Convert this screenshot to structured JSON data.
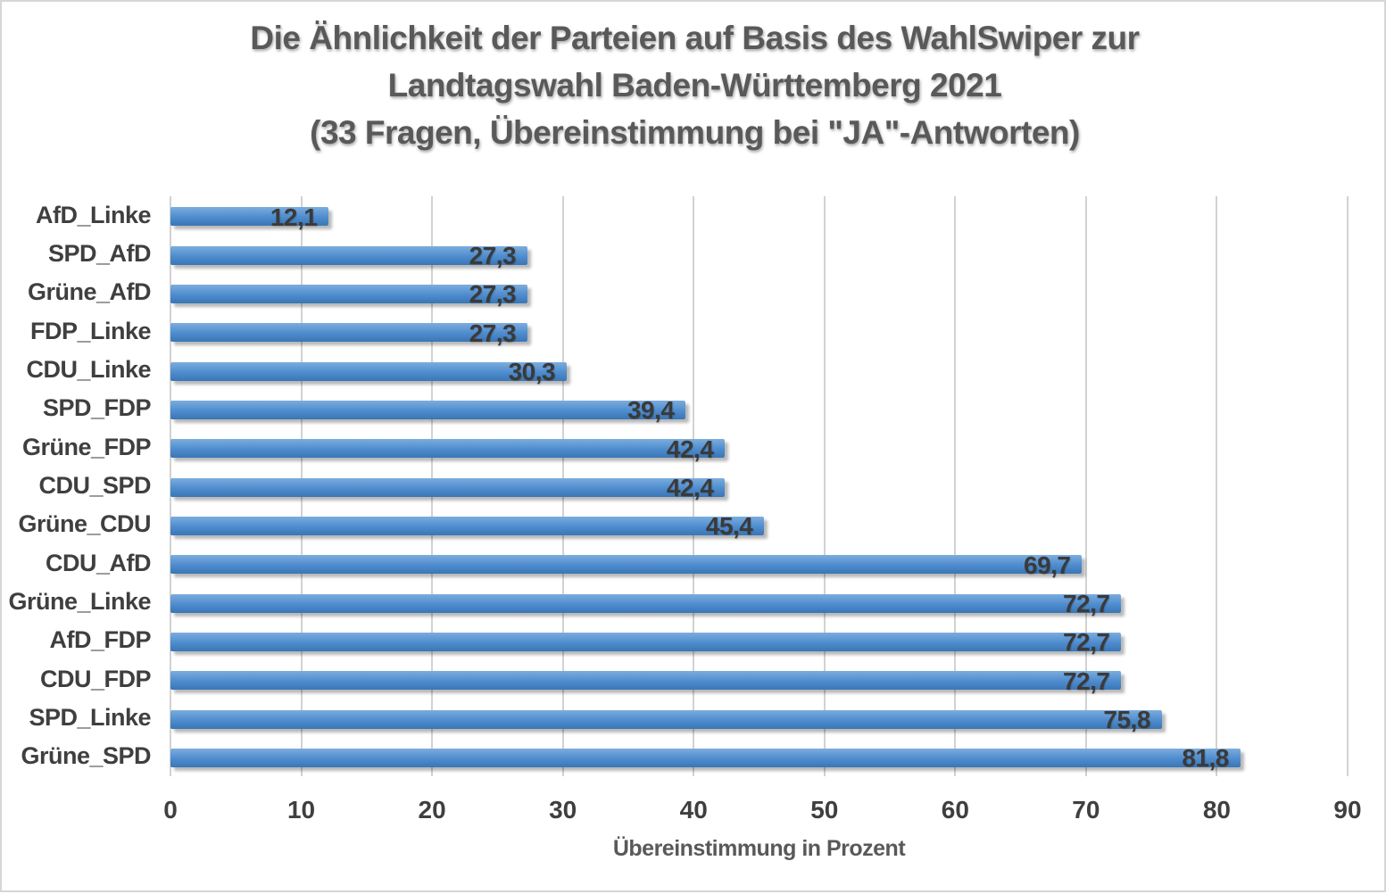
{
  "title": {
    "line1": "Die Ähnlichkeit der Parteien auf Basis des WahlSwiper zur",
    "line2": "Landtagswahl Baden-Württemberg 2021",
    "line3": "(33 Fragen, Übereinstimmung bei \"JA\"-Antworten)"
  },
  "chart_data": {
    "type": "bar",
    "orientation": "horizontal",
    "title": "Die Ähnlichkeit der Parteien auf Basis des WahlSwiper zur Landtagswahl Baden-Württemberg 2021 (33 Fragen, Übereinstimmung bei \"JA\"-Antworten)",
    "categories": [
      "AfD_Linke",
      "SPD_AfD",
      "Grüne_AfD",
      "FDP_Linke",
      "CDU_Linke",
      "SPD_FDP",
      "Grüne_FDP",
      "CDU_SPD",
      "Grüne_CDU",
      "CDU_AfD",
      "Grüne_Linke",
      "AfD_FDP",
      "CDU_FDP",
      "SPD_Linke",
      "Grüne_SPD"
    ],
    "values": [
      12.1,
      27.3,
      27.3,
      27.3,
      30.3,
      39.4,
      42.4,
      42.4,
      45.4,
      69.7,
      72.7,
      72.7,
      72.7,
      75.8,
      81.8
    ],
    "value_labels": [
      "12,1",
      "27,3",
      "27,3",
      "27,3",
      "30,3",
      "39,4",
      "42,4",
      "42,4",
      "45,4",
      "69,7",
      "72,7",
      "72,7",
      "72,7",
      "75,8",
      "81,8"
    ],
    "xlabel": "Übereinstimmung in Prozent",
    "xlim": [
      0,
      90
    ],
    "xticks": [
      0,
      10,
      20,
      30,
      40,
      50,
      60,
      70,
      80,
      90
    ],
    "xtick_labels": [
      "0",
      "10",
      "20",
      "30",
      "40",
      "50",
      "60",
      "70",
      "80",
      "90"
    ],
    "grid": "vertical-on",
    "legend": "none",
    "colors": {
      "bar_gradient_top": "#7cadde",
      "bar_mid": "#4e8cce",
      "bar_gradient_bottom": "#3a76b5",
      "gridline": "#d2d2d2",
      "label_text": "#3f3f3f",
      "title_text": "#595959",
      "frame_border": "#d6d6d6",
      "background": "#ffffff"
    }
  }
}
